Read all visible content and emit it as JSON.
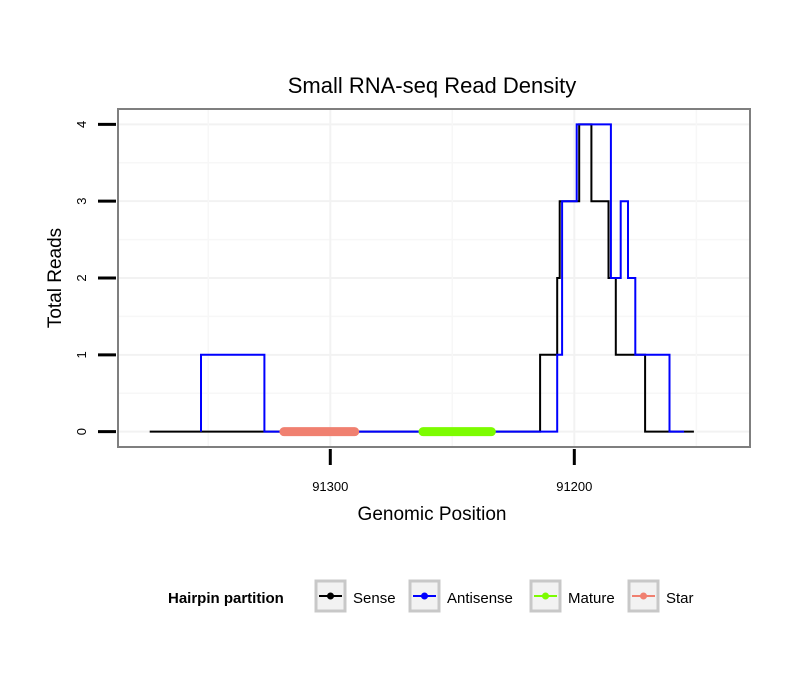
{
  "chart_data": {
    "type": "line",
    "title": "Small RNA-seq Read Density",
    "xlabel": "Genomic Position",
    "ylabel": "Total Reads",
    "x_reversed": true,
    "xlim": [
      91387,
      91128
    ],
    "ylim": [
      -0.2,
      4.2
    ],
    "x_ticks": [
      91300,
      91200
    ],
    "x_tick_labels": [
      "91300",
      "91200"
    ],
    "y_ticks": [
      0,
      1,
      2,
      3,
      4
    ],
    "y_tick_labels": [
      "0",
      "1",
      "2",
      "3",
      "4"
    ],
    "grid": true,
    "legend_title": "Hairpin partition",
    "legend_position": "bottom",
    "series": [
      {
        "name": "Sense",
        "color": "#000000",
        "kind": "line",
        "points": [
          [
            91374,
            0
          ],
          [
            91214,
            0
          ],
          [
            91214,
            1
          ],
          [
            91207,
            1
          ],
          [
            91207,
            2
          ],
          [
            91206,
            2
          ],
          [
            91206,
            3
          ],
          [
            91198,
            3
          ],
          [
            91198,
            4
          ],
          [
            91193,
            4
          ],
          [
            91193,
            3
          ],
          [
            91186,
            3
          ],
          [
            91186,
            2
          ],
          [
            91183,
            2
          ],
          [
            91183,
            1
          ],
          [
            91171,
            1
          ],
          [
            91171,
            0
          ],
          [
            91151,
            0
          ]
        ]
      },
      {
        "name": "Antisense",
        "color": "#0000ff",
        "kind": "line",
        "points": [
          [
            91353,
            0
          ],
          [
            91353,
            1
          ],
          [
            91327,
            1
          ],
          [
            91327,
            0
          ],
          [
            91207,
            0
          ],
          [
            91207,
            1
          ],
          [
            91205,
            1
          ],
          [
            91205,
            3
          ],
          [
            91199,
            3
          ],
          [
            91199,
            4
          ],
          [
            91185,
            4
          ],
          [
            91185,
            2
          ],
          [
            91181,
            2
          ],
          [
            91181,
            3
          ],
          [
            91178,
            3
          ],
          [
            91178,
            2
          ],
          [
            91175,
            2
          ],
          [
            91175,
            1
          ],
          [
            91161,
            1
          ],
          [
            91161,
            0
          ],
          [
            91155,
            0
          ]
        ]
      },
      {
        "name": "Mature",
        "color": "#7cfc00",
        "kind": "segment",
        "from": 91262,
        "to": 91234,
        "y": 0
      },
      {
        "name": "Star",
        "color": "#f08070",
        "kind": "segment",
        "from": 91319,
        "to": 91290,
        "y": 0
      }
    ]
  }
}
